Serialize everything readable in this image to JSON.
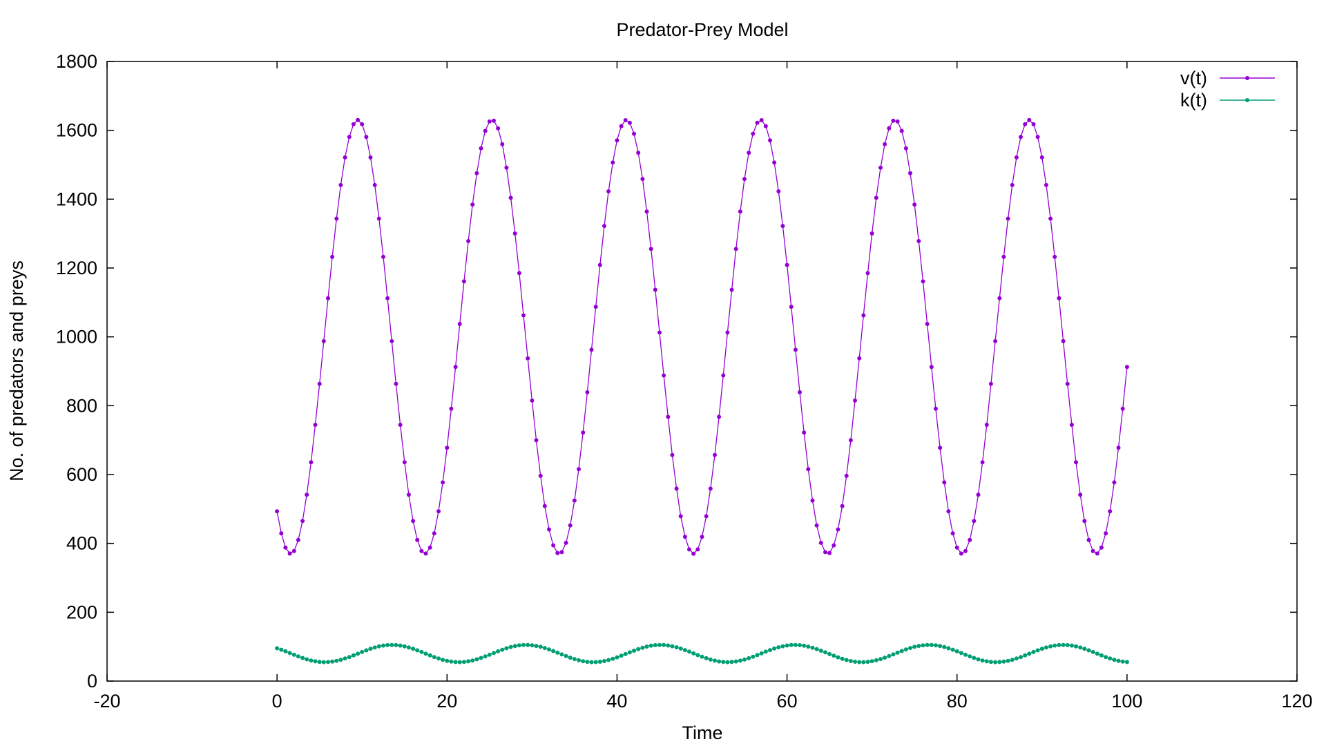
{
  "colors": {
    "v": "#9400d3",
    "k": "#009e73",
    "axis": "#000000"
  },
  "chart_data": {
    "type": "line",
    "title": "Predator-Prey Model",
    "xlabel": "Time",
    "ylabel": "No. of predators and preys",
    "xlim": [
      -20,
      120
    ],
    "ylim": [
      0,
      1800
    ],
    "xticks": [
      -20,
      0,
      20,
      40,
      60,
      80,
      100,
      120
    ],
    "yticks": [
      0,
      200,
      400,
      600,
      800,
      1000,
      1200,
      1400,
      1600,
      1800
    ],
    "legend_position": "top-right",
    "grid": false,
    "series": [
      {
        "name": "v(t)",
        "color": "#9400d3",
        "marker": "point",
        "model": {
          "t_start": 0,
          "t_end": 100,
          "step": 0.5,
          "period": 15.8,
          "min": 370,
          "max": 1630,
          "first_peak_t": 9.5
        },
        "points": [
          [
            0,
            510
          ],
          [
            1.7,
            370
          ],
          [
            9.5,
            1630
          ],
          [
            17.4,
            370
          ],
          [
            25.3,
            1630
          ],
          [
            33.2,
            370
          ],
          [
            41.1,
            1630
          ],
          [
            49.0,
            370
          ],
          [
            56.9,
            1630
          ],
          [
            64.8,
            370
          ],
          [
            72.7,
            1630
          ],
          [
            80.6,
            370
          ],
          [
            88.5,
            1630
          ],
          [
            96.4,
            370
          ],
          [
            100,
            1030
          ]
        ]
      },
      {
        "name": "k(t)",
        "color": "#009e73",
        "marker": "point",
        "model": {
          "t_start": 0,
          "t_end": 100,
          "step": 0.5,
          "period": 15.8,
          "min": 55,
          "max": 105,
          "first_peak_t": 13.5
        },
        "points": [
          [
            0,
            97
          ],
          [
            5.6,
            55
          ],
          [
            13.5,
            105
          ],
          [
            21.4,
            55
          ],
          [
            29.3,
            105
          ],
          [
            37.2,
            55
          ],
          [
            45.1,
            105
          ],
          [
            53.0,
            55
          ],
          [
            60.9,
            105
          ],
          [
            68.8,
            55
          ],
          [
            76.7,
            105
          ],
          [
            84.6,
            55
          ],
          [
            92.5,
            105
          ],
          [
            100,
            55
          ]
        ]
      }
    ]
  }
}
